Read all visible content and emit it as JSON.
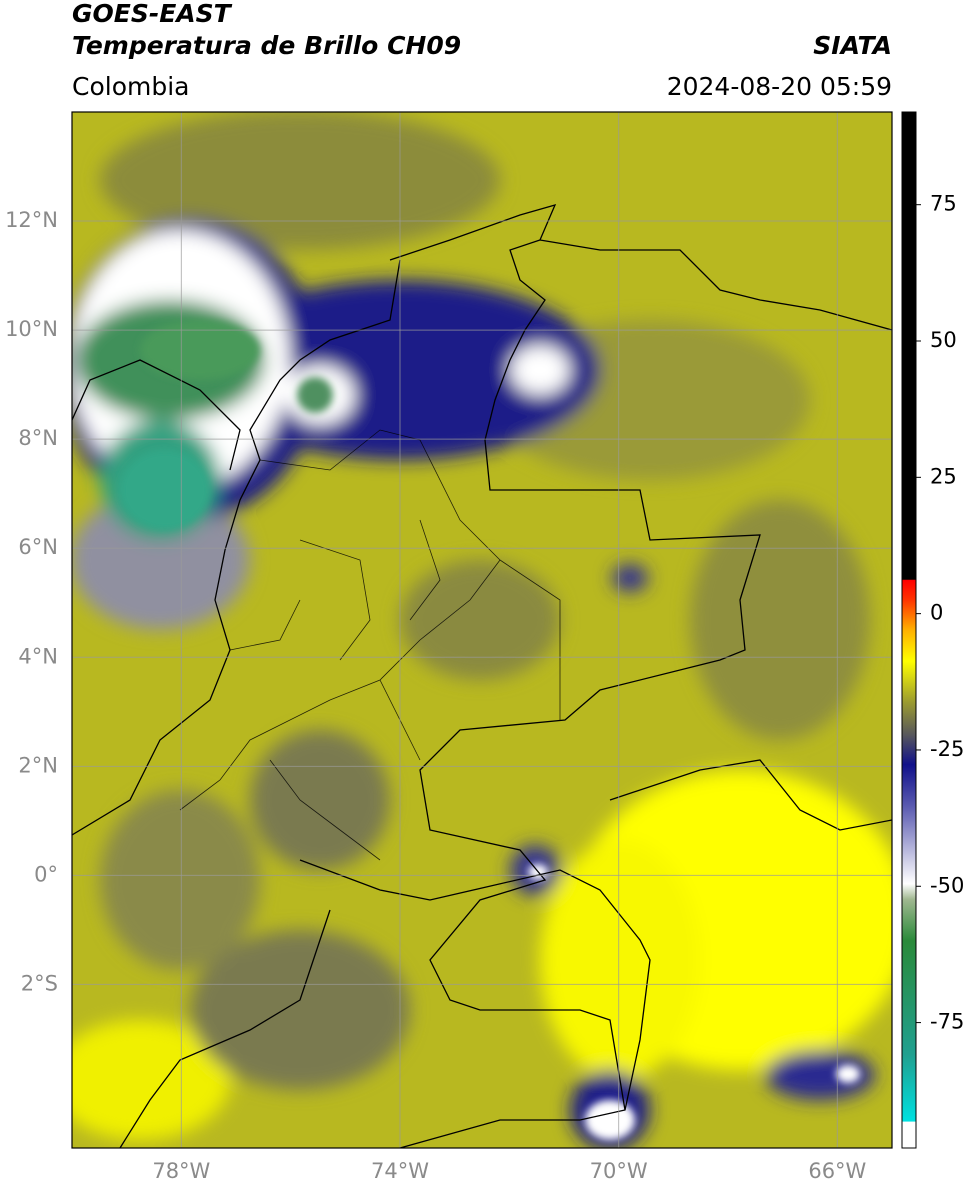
{
  "header": {
    "satellite": "GOES-EAST",
    "product": "Temperatura de Brillo CH09",
    "region": "Colombia",
    "source": "SIATA",
    "datetime": "2024-08-20 05:59"
  },
  "map": {
    "lonlim": [
      -80,
      -65
    ],
    "latlim": [
      -5,
      14
    ],
    "lat_ticks": [
      {
        "value": 12,
        "label": "12°N"
      },
      {
        "value": 10,
        "label": "10°N"
      },
      {
        "value": 8,
        "label": "8°N"
      },
      {
        "value": 6,
        "label": "6°N"
      },
      {
        "value": 4,
        "label": "4°N"
      },
      {
        "value": 2,
        "label": "2°N"
      },
      {
        "value": 0,
        "label": "0°"
      },
      {
        "value": -2,
        "label": "2°S"
      }
    ],
    "lon_ticks": [
      {
        "value": -78,
        "label": "78°W"
      },
      {
        "value": -74,
        "label": "74°W"
      },
      {
        "value": -70,
        "label": "70°W"
      },
      {
        "value": -66,
        "label": "66°W"
      }
    ]
  },
  "colorbar": {
    "lim": [
      -98,
      92
    ],
    "ticks": [
      75,
      50,
      25,
      0,
      -25,
      -50,
      -75
    ]
  }
}
